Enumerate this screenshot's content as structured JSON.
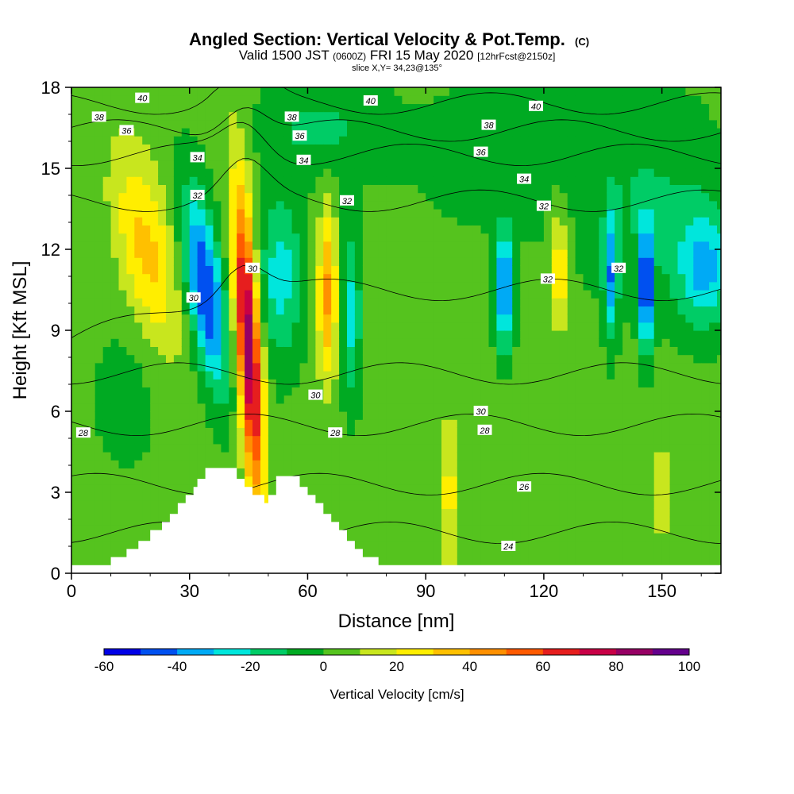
{
  "title": {
    "main": "Angled Section: Vertical Velocity & Pot.Temp.",
    "main_suffix": "(C)",
    "valid_prefix": "Valid 1500 JST",
    "valid_utc": "(0600Z)",
    "valid_date": "FRI 15 May 2020",
    "valid_fcst": "[12hrFcst@2150z]",
    "slice": "slice X,Y= 34,23@135°"
  },
  "chart_data": {
    "type": "heatmap",
    "xlabel": "Distance [nm]",
    "ylabel": "Height [Kft MSL]",
    "xlim": [
      0,
      165
    ],
    "ylim": [
      0,
      18
    ],
    "x_ticks": [
      0,
      30,
      60,
      90,
      120,
      150
    ],
    "y_ticks": [
      0,
      3,
      6,
      9,
      12,
      15,
      18
    ],
    "x_tick_labels": [
      "0",
      "30",
      "60",
      "90",
      "120",
      "150"
    ],
    "y_tick_labels": [
      "0",
      "3",
      "6",
      "9",
      "12",
      "15",
      "18"
    ],
    "colorbar": {
      "title": "Vertical Velocity [cm/s]",
      "range": [
        -60,
        100
      ],
      "step": 10,
      "tick_values": [
        -60,
        -40,
        -20,
        0,
        20,
        40,
        60,
        80,
        100
      ],
      "tick_labels": [
        "-60",
        "-40",
        "-20",
        "0",
        "20",
        "40",
        "60",
        "80",
        "100"
      ],
      "colors": [
        "#0000e6",
        "#0050f0",
        "#00aaf5",
        "#00e6dc",
        "#00cc66",
        "#00aa22",
        "#55c31e",
        "#c8e61e",
        "#ffee00",
        "#ffc000",
        "#ff9000",
        "#ff5a00",
        "#e61e1e",
        "#c80046",
        "#960064",
        "#64008c"
      ]
    },
    "velocity_features": [
      {
        "x": 20,
        "y": 12,
        "value": 35
      },
      {
        "x": 34,
        "y": 10.5,
        "value": -55
      },
      {
        "x": 45,
        "y": 8.5,
        "value": 85
      },
      {
        "x": 55,
        "y": 11,
        "value": -20
      },
      {
        "x": 65,
        "y": 10,
        "value": 40
      },
      {
        "x": 71,
        "y": 9.5,
        "value": -25
      },
      {
        "x": 110,
        "y": 10.5,
        "value": -45
      },
      {
        "x": 124,
        "y": 11,
        "value": 25
      },
      {
        "x": 137,
        "y": 11,
        "value": -35
      },
      {
        "x": 146,
        "y": 10.5,
        "value": -55
      },
      {
        "x": 160,
        "y": 11,
        "value": -30
      }
    ],
    "theta_contours": [
      24,
      26,
      28,
      30,
      32,
      34,
      36,
      38,
      40
    ],
    "contour_labels": [
      {
        "text": "40",
        "x": 18,
        "y": 17.6
      },
      {
        "text": "38",
        "x": 7,
        "y": 16.9
      },
      {
        "text": "36",
        "x": 14,
        "y": 16.4
      },
      {
        "text": "34",
        "x": 32,
        "y": 15.4
      },
      {
        "text": "32",
        "x": 32,
        "y": 14
      },
      {
        "text": "30",
        "x": 31,
        "y": 10.2
      },
      {
        "text": "30",
        "x": 46,
        "y": 11.3
      },
      {
        "text": "28",
        "x": 3,
        "y": 5.2
      },
      {
        "text": "38",
        "x": 56,
        "y": 16.9
      },
      {
        "text": "36",
        "x": 58,
        "y": 16.2
      },
      {
        "text": "34",
        "x": 59,
        "y": 15.3
      },
      {
        "text": "32",
        "x": 70,
        "y": 13.8
      },
      {
        "text": "30",
        "x": 62,
        "y": 6.6
      },
      {
        "text": "28",
        "x": 67,
        "y": 5.2
      },
      {
        "text": "40",
        "x": 76,
        "y": 17.5
      },
      {
        "text": "40",
        "x": 118,
        "y": 17.3
      },
      {
        "text": "38",
        "x": 106,
        "y": 16.6
      },
      {
        "text": "36",
        "x": 104,
        "y": 15.6
      },
      {
        "text": "34",
        "x": 115,
        "y": 14.6
      },
      {
        "text": "32",
        "x": 120,
        "y": 13.6
      },
      {
        "text": "32",
        "x": 121,
        "y": 10.9
      },
      {
        "text": "32",
        "x": 139,
        "y": 11.3
      },
      {
        "text": "30",
        "x": 104,
        "y": 6
      },
      {
        "text": "28",
        "x": 105,
        "y": 5.3
      },
      {
        "text": "26",
        "x": 115,
        "y": 3.2
      },
      {
        "text": "24",
        "x": 111,
        "y": 1
      }
    ],
    "terrain": [
      [
        10,
        0.6
      ],
      [
        14,
        0.6
      ],
      [
        14,
        0.9
      ],
      [
        17,
        0.9
      ],
      [
        17,
        1.2
      ],
      [
        20,
        1.2
      ],
      [
        20,
        1.6
      ],
      [
        23,
        1.6
      ],
      [
        23,
        1.9
      ],
      [
        25,
        1.9
      ],
      [
        25,
        2.2
      ],
      [
        27,
        2.2
      ],
      [
        27,
        2.6
      ],
      [
        29,
        2.6
      ],
      [
        29,
        2.9
      ],
      [
        31,
        2.9
      ],
      [
        31,
        3.2
      ],
      [
        32,
        3.2
      ],
      [
        32,
        3.5
      ],
      [
        34,
        3.5
      ],
      [
        34,
        3.9
      ],
      [
        42,
        3.9
      ],
      [
        42,
        3.5
      ],
      [
        44,
        3.5
      ],
      [
        44,
        3.2
      ],
      [
        46,
        3.2
      ],
      [
        46,
        2.9
      ],
      [
        49,
        2.9
      ],
      [
        49,
        2.6
      ],
      [
        50,
        2.6
      ],
      [
        50,
        2.9
      ],
      [
        52,
        2.9
      ],
      [
        52,
        3.6
      ],
      [
        58,
        3.6
      ],
      [
        58,
        3.2
      ],
      [
        60,
        3.2
      ],
      [
        60,
        2.9
      ],
      [
        62,
        2.9
      ],
      [
        62,
        2.6
      ],
      [
        64,
        2.6
      ],
      [
        64,
        2.2
      ],
      [
        66,
        2.2
      ],
      [
        66,
        1.9
      ],
      [
        68,
        1.9
      ],
      [
        68,
        1.6
      ],
      [
        70,
        1.6
      ],
      [
        70,
        1.2
      ],
      [
        72,
        1.2
      ],
      [
        72,
        0.9
      ],
      [
        74,
        0.9
      ],
      [
        74,
        0.6
      ],
      [
        78,
        0.6
      ],
      [
        78,
        0.3
      ],
      [
        165,
        0.3
      ]
    ]
  }
}
